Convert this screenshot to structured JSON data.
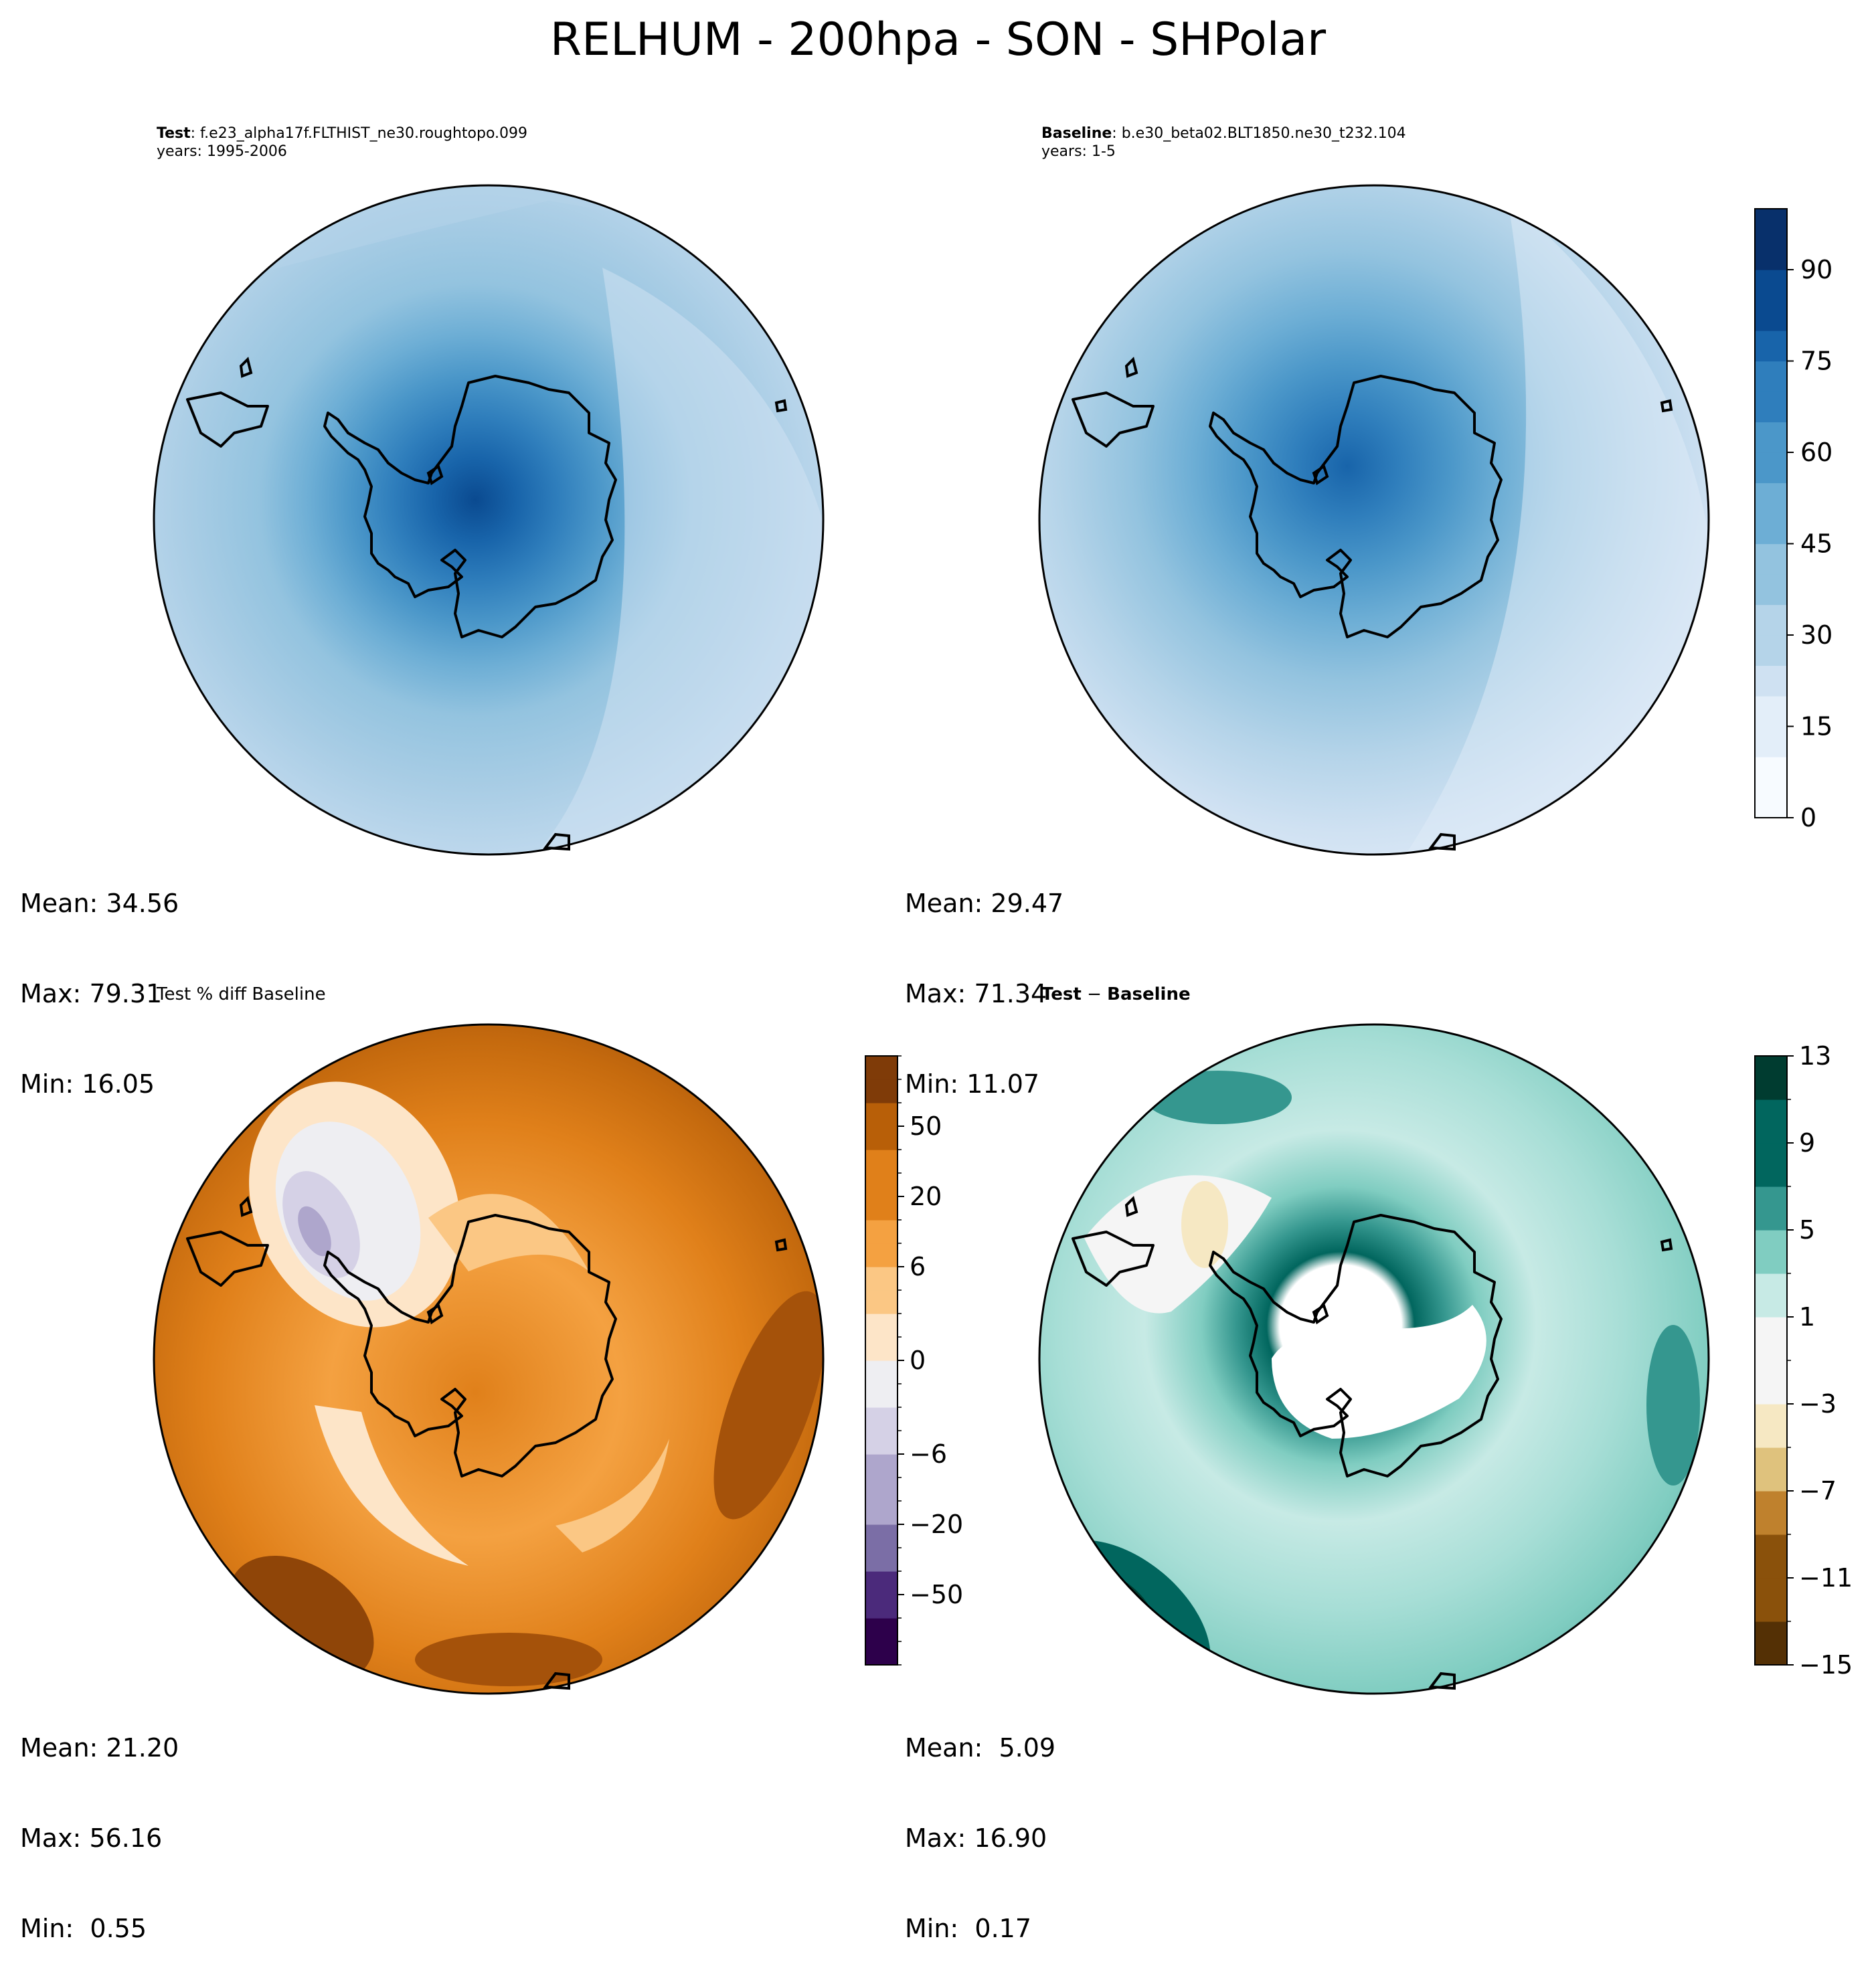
{
  "title": "RELHUM - 200hpa - SON - SHPolar",
  "panels": {
    "test": {
      "label": "Test",
      "case": ": f.e23_alpha17f.FLTHIST_ne30.roughtopo.099",
      "years": "years: 1995-2006",
      "mean": "Mean: 34.56",
      "max": "Max: 79.31",
      "min": "Min: 16.05"
    },
    "baseline": {
      "label": "Baseline",
      "case": ": b.e30_beta02.BLT1850.ne30_t232.104",
      "years": "years: 1-5",
      "mean": "Mean: 29.47",
      "max": "Max: 71.34",
      "min": "Min: 11.07"
    },
    "pctdiff": {
      "title": "Test % diff Baseline",
      "mean": "Mean: 21.20",
      "max": "Max: 56.16",
      "min": "Min:  0.55"
    },
    "diff": {
      "title_a": "Test",
      "title_op": " − ",
      "title_b": "Baseline",
      "mean": "Mean:  5.09",
      "max": "Max: 16.90",
      "min": "Min:  0.17"
    }
  },
  "chart_data": [
    {
      "type": "heatmap",
      "name": "Test",
      "projection": "south polar stereographic",
      "colormap": "Blues",
      "colorbar_ticks": [
        0,
        15,
        30,
        45,
        60,
        75,
        90
      ],
      "colorbar_range": [
        0,
        100
      ],
      "colorbar_levels": [
        0,
        5,
        10,
        15,
        20,
        25,
        30,
        35,
        40,
        45,
        50,
        55,
        60,
        65,
        70,
        75,
        80,
        85,
        90,
        95,
        100
      ],
      "mean": 34.56,
      "max": 79.31,
      "min": 16.05
    },
    {
      "type": "heatmap",
      "name": "Baseline",
      "projection": "south polar stereographic",
      "colormap": "Blues",
      "colorbar_ticks": [
        0,
        15,
        30,
        45,
        60,
        75,
        90
      ],
      "colorbar_range": [
        0,
        100
      ],
      "mean": 29.47,
      "max": 71.34,
      "min": 11.07
    },
    {
      "type": "heatmap",
      "name": "Test % diff Baseline",
      "projection": "south polar stereographic",
      "colormap": "PuOr_r",
      "colorbar_ticks": [
        -50,
        -20,
        -6,
        0,
        6,
        20,
        50
      ],
      "colorbar_levels": [
        -100,
        -80,
        -60,
        -50,
        -40,
        -30,
        -20,
        -10,
        -8,
        -6,
        -4,
        -2,
        -1,
        0,
        1,
        2,
        4,
        6,
        8,
        10,
        20,
        30,
        40,
        50,
        60,
        80,
        100
      ],
      "mean": 21.2,
      "max": 56.16,
      "min": 0.55
    },
    {
      "type": "heatmap",
      "name": "Test - Baseline",
      "projection": "south polar stereographic",
      "colormap": "BrBG",
      "colorbar_ticks": [
        -15,
        -11,
        -7,
        -3,
        1,
        5,
        9,
        13
      ],
      "colorbar_levels": [
        -15,
        -13,
        -11,
        -9,
        -7,
        -5,
        -3,
        -1,
        1,
        3,
        5,
        7,
        9,
        11,
        13
      ],
      "mean": 5.09,
      "max": 16.9,
      "min": 0.17
    }
  ],
  "colors": {
    "blues": [
      "#f7fbff",
      "#e3eef9",
      "#cfe1f2",
      "#b5d4e9",
      "#93c3df",
      "#6daed5",
      "#4b97c9",
      "#2f7ebc",
      "#1864aa",
      "#0a4a90",
      "#08306b"
    ],
    "puor": [
      "#2d004b",
      "#4b2a7b",
      "#7b6ea6",
      "#aea6cc",
      "#d5d1e6",
      "#eeeef2",
      "#fde5c8",
      "#fbc784",
      "#f4a141",
      "#e0801a",
      "#b85f08",
      "#7f3b08"
    ],
    "brbg": [
      "#543005",
      "#8a510b",
      "#bf812d",
      "#dfc27d",
      "#f6e8c3",
      "#f5f5f5",
      "#c7eae5",
      "#80cdc1",
      "#35978f",
      "#01665e",
      "#003c30"
    ]
  }
}
